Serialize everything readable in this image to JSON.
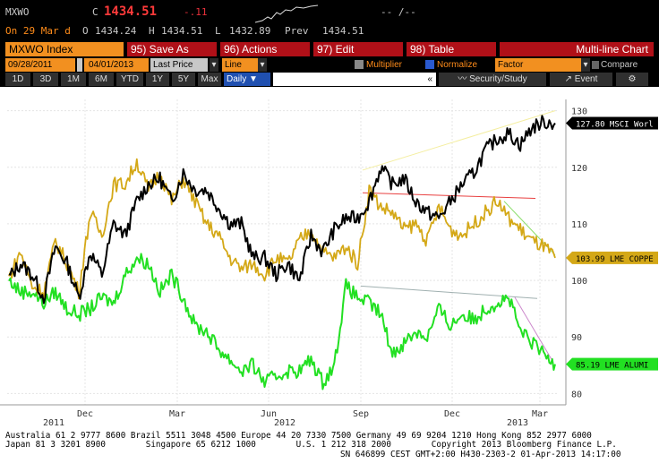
{
  "quote": {
    "ticker": "MXWO",
    "c_label": "C",
    "last": "1434.51",
    "change": "-.11",
    "time_row": "On 29 Mar d",
    "open_label": "O",
    "open": "1434.24",
    "high_label": "H",
    "high": "1434.51",
    "low_label": "L",
    "low": "1432.89",
    "prev_label": "Prev",
    "prev": "1434.51",
    "bidask": "-- /--"
  },
  "toolbar": {
    "security": "MXWO Index",
    "save": "95) Save As",
    "actions": "96) Actions",
    "edit": "97) Edit",
    "table": "98) Table",
    "title": "Multi-line Chart"
  },
  "controls": {
    "start_date": "09/28/2011",
    "end_date": "04/01/2013",
    "field": "Last Price",
    "chart_type": "Line",
    "multiplier": "Multiplier",
    "normalize": "Normalize",
    "factor": "Factor",
    "compare": "Compare"
  },
  "periods": [
    "1D",
    "3D",
    "1M",
    "6M",
    "YTD",
    "1Y",
    "5Y",
    "Max"
  ],
  "freq": "Daily",
  "security_study": "Security/Study",
  "event": "Event",
  "colors": {
    "msci": "#000000",
    "copper": "#d4a817",
    "aluminium": "#22e022",
    "trend_yellow": "#f4eea0",
    "trend_red": "#e84040",
    "trend_green": "#88dd66",
    "trend_gray": "#a0b0b0",
    "trend_violet": "#cc88cc"
  },
  "chart_data": {
    "type": "line",
    "ylim": [
      78,
      132
    ],
    "yticks": [
      80,
      90,
      100,
      110,
      120,
      130
    ],
    "xlabels_top": [
      "Dec",
      "Mar",
      "Jun",
      "Sep",
      "Dec",
      "Mar"
    ],
    "xlabels_bottom": [
      "2011",
      "2012",
      "2013"
    ],
    "series": [
      {
        "name": "MSCI Worl",
        "last": "127.80",
        "values": [
          100.5,
          103,
          101,
          97,
          106,
          103,
          97,
          105,
          101,
          110,
          108,
          114,
          117,
          118,
          114,
          119,
          116,
          116,
          113,
          110,
          110,
          104,
          104,
          101,
          103,
          100,
          108,
          105,
          109,
          111,
          111,
          114,
          120,
          117,
          118,
          114,
          112,
          111,
          114,
          117,
          119,
          123,
          125,
          126,
          124,
          127,
          128,
          127.8
        ]
      },
      {
        "name": "LME COPPE",
        "last": "103.99",
        "values": [
          100.5,
          105,
          99,
          98,
          107,
          103,
          98,
          112,
          108,
          117,
          117,
          121,
          116,
          119,
          114,
          118,
          114,
          110,
          108,
          104,
          102,
          103,
          101,
          104,
          103,
          107,
          109,
          105,
          104,
          106,
          103,
          116,
          113,
          112,
          109,
          110,
          107,
          113,
          109,
          108,
          110,
          112,
          114,
          111,
          109,
          107,
          106,
          103.99
        ]
      },
      {
        "name": "LME ALUMI",
        "last": "85.19",
        "values": [
          100,
          98,
          98,
          96,
          98,
          95,
          94,
          95,
          97,
          96,
          101,
          104,
          103,
          98,
          101,
          97,
          92,
          91,
          88,
          86,
          84,
          85,
          82,
          83,
          84,
          84,
          86,
          82,
          85,
          99,
          97,
          96,
          94,
          87,
          89,
          91,
          90,
          95,
          92,
          94,
          93,
          95,
          96,
          97,
          91,
          89,
          87,
          85.19
        ]
      }
    ],
    "label_text": [
      "127.80 MSCI Worl",
      "103.99 LME COPPE",
      "85.19  LME ALUMI"
    ]
  },
  "footer": {
    "line1": "Australia 61 2 9777 8600 Brazil 5511 3048 4500 Europe 44 20 7330 7500 Germany 49 69 9204 1210 Hong Kong 852 2977 6000",
    "line2": "Japan 81 3 3201 8900        Singapore 65 6212 1000        U.S. 1 212 318 2000        Copyright 2013 Bloomberg Finance L.P.",
    "line3": "SN 646899 CEST GMT+2:00 H430-2303-2 01-Apr-2013 14:17:00"
  }
}
